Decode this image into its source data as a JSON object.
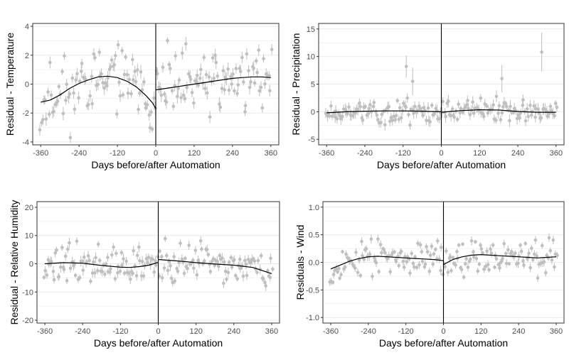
{
  "figure": {
    "colors": {
      "points": "#bfbfbf",
      "trend": "#000000",
      "vline": "#000000",
      "grid": "#ebebeb",
      "panel_border": "#333333"
    }
  },
  "chart_data": [
    {
      "type": "scatter",
      "id": "temperature",
      "xlabel": "Days before/after Automation",
      "ylabel": "Residual - Temperature",
      "xlim": [
        -385,
        385
      ],
      "ylim": [
        -4.2,
        4.2
      ],
      "xticks": [
        -360,
        -240,
        -120,
        0,
        120,
        240,
        360
      ],
      "yticks": [
        -4,
        -2,
        0,
        2,
        4
      ],
      "ytick_labels": [
        "-4",
        "-2",
        "0",
        "2",
        "4"
      ],
      "vline_x": 0,
      "grid": true,
      "trend_before": [
        [
          -360,
          -1.25
        ],
        [
          -330,
          -1.1
        ],
        [
          -300,
          -0.75
        ],
        [
          -270,
          -0.3
        ],
        [
          -240,
          0.05
        ],
        [
          -210,
          0.3
        ],
        [
          -180,
          0.5
        ],
        [
          -150,
          0.55
        ],
        [
          -120,
          0.45
        ],
        [
          -90,
          0.2
        ],
        [
          -60,
          -0.2
        ],
        [
          -30,
          -0.8
        ],
        [
          -10,
          -1.3
        ],
        [
          0,
          -1.7
        ]
      ],
      "trend_after": [
        [
          0,
          -0.4
        ],
        [
          30,
          -0.3
        ],
        [
          60,
          -0.2
        ],
        [
          90,
          -0.1
        ],
        [
          120,
          0.0
        ],
        [
          150,
          0.1
        ],
        [
          180,
          0.2
        ],
        [
          210,
          0.3
        ],
        [
          240,
          0.4
        ],
        [
          270,
          0.45
        ],
        [
          300,
          0.5
        ],
        [
          330,
          0.5
        ],
        [
          360,
          0.45
        ]
      ],
      "band_before": [
        [
          -360,
          -1.25,
          1.5
        ],
        [
          -270,
          -0.3,
          1.6
        ],
        [
          -180,
          0.5,
          1.3
        ],
        [
          -120,
          0.45,
          1.3
        ],
        [
          -60,
          -0.2,
          1.2
        ],
        [
          0,
          -1.7,
          1.4
        ]
      ],
      "band_after": [
        [
          0,
          -0.4,
          1.5
        ],
        [
          120,
          0.0,
          1.3
        ],
        [
          240,
          0.4,
          1.5
        ],
        [
          360,
          0.45,
          1.3
        ]
      ],
      "error_scale": 0.35,
      "point_step": 4,
      "seed": 11
    },
    {
      "type": "scatter",
      "id": "precipitation",
      "xlabel": "Days before/after Automation",
      "ylabel": "Residual - Precipitation",
      "xlim": [
        -385,
        385
      ],
      "ylim": [
        -6,
        16
      ],
      "xticks": [
        -360,
        -240,
        -120,
        0,
        120,
        240,
        360
      ],
      "yticks": [
        -5,
        0,
        5,
        10,
        15
      ],
      "ytick_labels": [
        "-5",
        "0",
        "5",
        "10",
        "15"
      ],
      "vline_x": 0,
      "grid": true,
      "trend_before": [
        [
          -360,
          -0.2
        ],
        [
          -300,
          0.0
        ],
        [
          -240,
          0.1
        ],
        [
          -180,
          0.15
        ],
        [
          -120,
          0.15
        ],
        [
          -60,
          0.1
        ],
        [
          0,
          0.0
        ]
      ],
      "trend_after": [
        [
          0,
          -0.1
        ],
        [
          60,
          0.2
        ],
        [
          120,
          0.35
        ],
        [
          180,
          0.3
        ],
        [
          240,
          0.05
        ],
        [
          300,
          -0.1
        ],
        [
          360,
          -0.1
        ]
      ],
      "band_before": [
        [
          -360,
          -0.2,
          1.0
        ],
        [
          -300,
          0.0,
          1.3
        ],
        [
          -240,
          0.1,
          1.6
        ],
        [
          -120,
          0.15,
          1.5
        ],
        [
          0,
          0.0,
          1.3
        ]
      ],
      "band_after": [
        [
          0,
          -0.1,
          1.2
        ],
        [
          120,
          0.35,
          1.5
        ],
        [
          240,
          0.05,
          1.2
        ],
        [
          360,
          -0.1,
          1.0
        ]
      ],
      "error_scale": 0.8,
      "point_step": 4,
      "seed": 23,
      "outliers": [
        [
          -110,
          8.2,
          2.0
        ],
        [
          -90,
          5.5,
          2.5
        ],
        [
          190,
          6.0,
          2.5
        ],
        [
          315,
          10.8,
          3.5
        ]
      ]
    },
    {
      "type": "scatter",
      "id": "humidity",
      "xlabel": "Days before/after Automation",
      "ylabel": "Residual - Relative Humidity",
      "xlim": [
        -385,
        385
      ],
      "ylim": [
        -21,
        22
      ],
      "xticks": [
        -360,
        -240,
        -120,
        0,
        120,
        240,
        360
      ],
      "yticks": [
        -20,
        -10,
        0,
        10,
        20
      ],
      "ytick_labels": [
        "-20",
        "-10",
        "0",
        "10",
        "20"
      ],
      "vline_x": 0,
      "grid": true,
      "trend_before": [
        [
          -360,
          0.0
        ],
        [
          -300,
          0.4
        ],
        [
          -240,
          0.2
        ],
        [
          -180,
          -0.6
        ],
        [
          -120,
          -1.2
        ],
        [
          -90,
          -1.3
        ],
        [
          -60,
          -1.0
        ],
        [
          -30,
          -0.5
        ],
        [
          0,
          0.5
        ]
      ],
      "trend_after": [
        [
          0,
          1.5
        ],
        [
          60,
          1.0
        ],
        [
          120,
          0.4
        ],
        [
          180,
          -0.1
        ],
        [
          240,
          -0.5
        ],
        [
          300,
          -1.3
        ],
        [
          360,
          -3.5
        ]
      ],
      "band_before": [
        [
          -360,
          0.0,
          4.5
        ],
        [
          -300,
          0.4,
          4.8
        ],
        [
          -180,
          -0.6,
          4.2
        ],
        [
          -60,
          -1.0,
          4.0
        ],
        [
          0,
          0.5,
          4.0
        ]
      ],
      "band_after": [
        [
          0,
          1.5,
          4.2
        ],
        [
          120,
          0.4,
          3.8
        ],
        [
          240,
          -0.5,
          3.8
        ],
        [
          360,
          -3.5,
          3.8
        ]
      ],
      "error_scale": 1.4,
      "point_step": 4,
      "seed": 37
    },
    {
      "type": "scatter",
      "id": "wind",
      "xlabel": "Days before/after Automation",
      "ylabel": "Residuals - Wind",
      "xlim": [
        -385,
        385
      ],
      "ylim": [
        -1.1,
        1.1
      ],
      "xticks": [
        -360,
        -240,
        -120,
        0,
        120,
        240,
        360
      ],
      "yticks": [
        -1.0,
        -0.5,
        0.0,
        0.5,
        1.0
      ],
      "ytick_labels": [
        "-1.0",
        "-0.5",
        "0.0",
        "0.5",
        "1.0"
      ],
      "vline_x": 0,
      "grid": true,
      "trend_before": [
        [
          -360,
          -0.12
        ],
        [
          -330,
          -0.05
        ],
        [
          -300,
          0.02
        ],
        [
          -270,
          0.07
        ],
        [
          -240,
          0.1
        ],
        [
          -210,
          0.11
        ],
        [
          -180,
          0.1
        ],
        [
          -150,
          0.09
        ],
        [
          -120,
          0.08
        ],
        [
          -90,
          0.07
        ],
        [
          -60,
          0.06
        ],
        [
          -30,
          0.05
        ],
        [
          0,
          0.03
        ]
      ],
      "trend_after": [
        [
          0,
          -0.04
        ],
        [
          30,
          0.05
        ],
        [
          60,
          0.1
        ],
        [
          90,
          0.13
        ],
        [
          120,
          0.14
        ],
        [
          150,
          0.13
        ],
        [
          180,
          0.12
        ],
        [
          210,
          0.11
        ],
        [
          240,
          0.1
        ],
        [
          270,
          0.09
        ],
        [
          300,
          0.08
        ],
        [
          330,
          0.09
        ],
        [
          360,
          0.1
        ]
      ],
      "band_before": [
        [
          -360,
          -0.12,
          0.22
        ],
        [
          -300,
          0.02,
          0.2
        ],
        [
          -180,
          0.1,
          0.18
        ],
        [
          -60,
          0.06,
          0.17
        ],
        [
          0,
          0.03,
          0.2
        ]
      ],
      "band_after": [
        [
          0,
          -0.04,
          0.2
        ],
        [
          120,
          0.14,
          0.2
        ],
        [
          240,
          0.1,
          0.18
        ],
        [
          360,
          0.1,
          0.22
        ]
      ],
      "error_scale": 0.06,
      "point_step": 4,
      "seed": 53
    }
  ]
}
